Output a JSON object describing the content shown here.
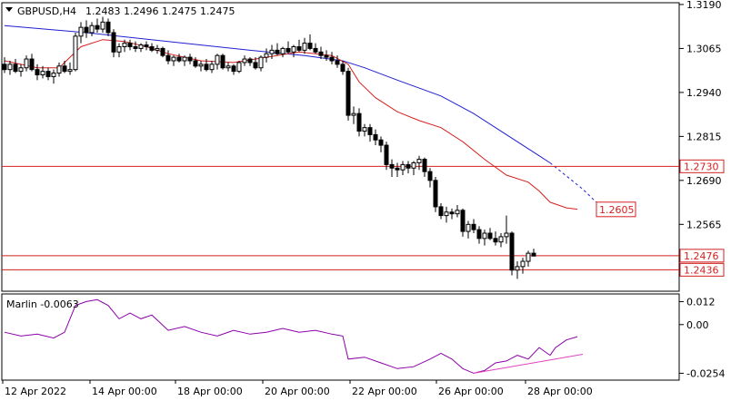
{
  "header": {
    "dropdown_icon": "triangle-down-icon",
    "symbol": "GBPUSD,H4",
    "ohlc": "1.2483 1.2496 1.2475 1.2475"
  },
  "colors": {
    "candle": "#000000",
    "ma_blue": "#1f1fd0",
    "ma_red": "#d42020",
    "level_line": "#d42020",
    "marlin_line": "#8b00a8",
    "divergence": "#e040c0"
  },
  "chart_data": [
    {
      "type": "candlestick",
      "ylim": [
        1.2375,
        1.3195
      ],
      "y_ticks": [
        "1.3190",
        "1.3065",
        "1.2940",
        "1.2815",
        "1.2690",
        "1.2565"
      ],
      "x_ticks": [
        "12 Apr 2022",
        "14 Apr 00:00",
        "18 Apr 00:00",
        "20 Apr 00:00",
        "22 Apr 00:00",
        "26 Apr 00:00",
        "28 Apr 00:00"
      ],
      "candles": [
        [
          1.302,
          1.304,
          1.2995,
          1.3005
        ],
        [
          1.3005,
          1.303,
          1.299,
          1.302
        ],
        [
          1.302,
          1.3035,
          1.2995,
          1.3
        ],
        [
          1.3,
          1.302,
          1.2985,
          1.301
        ],
        [
          1.301,
          1.3045,
          1.3,
          1.3035
        ],
        [
          1.3035,
          1.305,
          1.3,
          1.3005
        ],
        [
          1.3005,
          1.302,
          1.2975,
          1.299
        ],
        [
          1.299,
          1.3015,
          1.298,
          1.3
        ],
        [
          1.3,
          1.301,
          1.2975,
          1.2985
        ],
        [
          1.2985,
          1.3005,
          1.2965,
          1.2995
        ],
        [
          1.2995,
          1.3025,
          1.2985,
          1.3015
        ],
        [
          1.3015,
          1.303,
          1.2995,
          1.3
        ],
        [
          1.3,
          1.3025,
          1.299,
          1.3005
        ],
        [
          1.3005,
          1.311,
          1.3,
          1.31
        ],
        [
          1.31,
          1.314,
          1.308,
          1.3125
        ],
        [
          1.3125,
          1.3145,
          1.3095,
          1.311
        ],
        [
          1.311,
          1.314,
          1.31,
          1.313
        ],
        [
          1.313,
          1.315,
          1.311,
          1.312
        ],
        [
          1.312,
          1.3155,
          1.311,
          1.314
        ],
        [
          1.314,
          1.315,
          1.31,
          1.311
        ],
        [
          1.311,
          1.312,
          1.304,
          1.3055
        ],
        [
          1.3055,
          1.308,
          1.304,
          1.307
        ],
        [
          1.307,
          1.309,
          1.3055,
          1.308
        ],
        [
          1.308,
          1.309,
          1.306,
          1.307
        ],
        [
          1.307,
          1.3085,
          1.3055,
          1.3065
        ],
        [
          1.3065,
          1.308,
          1.3055,
          1.3075
        ],
        [
          1.3075,
          1.3085,
          1.306,
          1.307
        ],
        [
          1.307,
          1.308,
          1.3055,
          1.306
        ],
        [
          1.306,
          1.3075,
          1.305,
          1.3065
        ],
        [
          1.3065,
          1.307,
          1.304,
          1.3045
        ],
        [
          1.3045,
          1.306,
          1.302,
          1.303
        ],
        [
          1.303,
          1.3045,
          1.3015,
          1.304
        ],
        [
          1.304,
          1.305,
          1.3025,
          1.303
        ],
        [
          1.303,
          1.3045,
          1.3015,
          1.304
        ],
        [
          1.304,
          1.305,
          1.302,
          1.303
        ],
        [
          1.303,
          1.304,
          1.301,
          1.3015
        ],
        [
          1.3015,
          1.303,
          1.3,
          1.302
        ],
        [
          1.302,
          1.3035,
          1.3,
          1.3005
        ],
        [
          1.3005,
          1.303,
          1.2995,
          1.302
        ],
        [
          1.302,
          1.305,
          1.3005,
          1.3045
        ],
        [
          1.3045,
          1.305,
          1.3005,
          1.301
        ],
        [
          1.301,
          1.3025,
          1.3,
          1.3015
        ],
        [
          1.3015,
          1.302,
          1.299,
          1.3
        ],
        [
          1.3,
          1.303,
          1.2995,
          1.3025
        ],
        [
          1.3025,
          1.3045,
          1.3015,
          1.3035
        ],
        [
          1.3035,
          1.304,
          1.3015,
          1.3025
        ],
        [
          1.3025,
          1.304,
          1.3005,
          1.301
        ],
        [
          1.301,
          1.3045,
          1.3,
          1.304
        ],
        [
          1.304,
          1.3065,
          1.3025,
          1.305
        ],
        [
          1.305,
          1.3075,
          1.3035,
          1.306
        ],
        [
          1.306,
          1.308,
          1.3045,
          1.305
        ],
        [
          1.305,
          1.307,
          1.304,
          1.3065
        ],
        [
          1.3065,
          1.3085,
          1.305,
          1.3055
        ],
        [
          1.3055,
          1.3075,
          1.304,
          1.307
        ],
        [
          1.307,
          1.309,
          1.3055,
          1.306
        ],
        [
          1.306,
          1.3095,
          1.305,
          1.308
        ],
        [
          1.308,
          1.3105,
          1.306,
          1.3065
        ],
        [
          1.3065,
          1.308,
          1.305,
          1.3055
        ],
        [
          1.3055,
          1.307,
          1.3035,
          1.3045
        ],
        [
          1.3045,
          1.306,
          1.303,
          1.304
        ],
        [
          1.304,
          1.3055,
          1.302,
          1.303
        ],
        [
          1.303,
          1.3045,
          1.301,
          1.302
        ],
        [
          1.302,
          1.303,
          1.299,
          1.3
        ],
        [
          1.3,
          1.301,
          1.286,
          1.2875
        ],
        [
          1.2875,
          1.29,
          1.285,
          1.288
        ],
        [
          1.288,
          1.2895,
          1.2815,
          1.283
        ],
        [
          1.283,
          1.285,
          1.2815,
          1.284
        ],
        [
          1.284,
          1.285,
          1.28,
          1.282
        ],
        [
          1.282,
          1.2835,
          1.279,
          1.2805
        ],
        [
          1.2805,
          1.2815,
          1.277,
          1.279
        ],
        [
          1.279,
          1.28,
          1.272,
          1.2735
        ],
        [
          1.2735,
          1.275,
          1.27,
          1.2725
        ],
        [
          1.2725,
          1.274,
          1.27,
          1.272
        ],
        [
          1.272,
          1.2745,
          1.2705,
          1.2735
        ],
        [
          1.2735,
          1.2745,
          1.271,
          1.2725
        ],
        [
          1.2725,
          1.2745,
          1.2705,
          1.274
        ],
        [
          1.274,
          1.276,
          1.272,
          1.275
        ],
        [
          1.275,
          1.2755,
          1.27,
          1.2715
        ],
        [
          1.2715,
          1.2725,
          1.267,
          1.269
        ],
        [
          1.269,
          1.27,
          1.26,
          1.2615
        ],
        [
          1.2615,
          1.2625,
          1.258,
          1.259
        ],
        [
          1.259,
          1.2615,
          1.257,
          1.26
        ],
        [
          1.26,
          1.261,
          1.258,
          1.2595
        ],
        [
          1.2595,
          1.262,
          1.2585,
          1.2605
        ],
        [
          1.2605,
          1.261,
          1.253,
          1.2545
        ],
        [
          1.2545,
          1.2575,
          1.2525,
          1.2565
        ],
        [
          1.2565,
          1.258,
          1.254,
          1.255
        ],
        [
          1.255,
          1.256,
          1.251,
          1.2525
        ],
        [
          1.2525,
          1.255,
          1.2505,
          1.254
        ],
        [
          1.254,
          1.2555,
          1.252,
          1.2525
        ],
        [
          1.2525,
          1.2545,
          1.2505,
          1.2515
        ],
        [
          1.2515,
          1.254,
          1.25,
          1.253
        ],
        [
          1.253,
          1.259,
          1.251,
          1.254
        ],
        [
          1.254,
          1.2545,
          1.242,
          1.2435
        ],
        [
          1.2435,
          1.246,
          1.241,
          1.2445
        ],
        [
          1.2445,
          1.247,
          1.2425,
          1.246
        ],
        [
          1.246,
          1.249,
          1.2445,
          1.2483
        ],
        [
          1.2483,
          1.2496,
          1.2475,
          1.2475
        ]
      ],
      "ma_blue": [
        [
          0,
          1.313
        ],
        [
          15,
          1.311
        ],
        [
          30,
          1.3085
        ],
        [
          45,
          1.306
        ],
        [
          55,
          1.3045
        ],
        [
          62,
          1.303
        ],
        [
          66,
          1.301
        ],
        [
          72,
          1.2975
        ],
        [
          80,
          1.293
        ],
        [
          86,
          1.288
        ],
        [
          92,
          1.282
        ],
        [
          98,
          1.276
        ],
        [
          100,
          1.274
        ]
      ],
      "ma_blue_projection": [
        [
          100,
          1.274
        ],
        [
          106,
          1.2665
        ],
        [
          111,
          1.259
        ]
      ],
      "ma_red": [
        [
          0,
          1.303
        ],
        [
          6,
          1.301
        ],
        [
          10,
          1.301
        ],
        [
          14,
          1.307
        ],
        [
          18,
          1.309
        ],
        [
          22,
          1.3085
        ],
        [
          26,
          1.307
        ],
        [
          30,
          1.305
        ],
        [
          36,
          1.303
        ],
        [
          42,
          1.3025
        ],
        [
          48,
          1.304
        ],
        [
          54,
          1.3055
        ],
        [
          60,
          1.3045
        ],
        [
          63,
          1.302
        ],
        [
          65,
          1.297
        ],
        [
          68,
          1.2925
        ],
        [
          72,
          1.2885
        ],
        [
          76,
          1.286
        ],
        [
          80,
          1.284
        ],
        [
          84,
          1.28
        ],
        [
          88,
          1.275
        ],
        [
          92,
          1.2705
        ],
        [
          96,
          1.2685
        ],
        [
          98,
          1.266
        ],
        [
          100,
          1.2628
        ],
        [
          103,
          1.2612
        ],
        [
          105,
          1.2608
        ]
      ],
      "levels": [
        {
          "value": 1.273,
          "label": "1.2730"
        },
        {
          "value": 1.2476,
          "label": "1.2476"
        },
        {
          "value": 1.2436,
          "label": "1.2436"
        }
      ],
      "annotation": {
        "label": "1.2605",
        "value": 1.2605
      }
    },
    {
      "type": "line",
      "title": "Marlin -0.0063",
      "ylim": [
        -0.029,
        0.016
      ],
      "y_ticks": [
        "0.012",
        "0.00",
        "-0.0254"
      ],
      "values": [
        [
          0,
          -0.004
        ],
        [
          3,
          -0.006
        ],
        [
          6,
          -0.005
        ],
        [
          9,
          -0.007
        ],
        [
          11,
          -0.004
        ],
        [
          13,
          0.01
        ],
        [
          15,
          0.012
        ],
        [
          17,
          0.013
        ],
        [
          19,
          0.01
        ],
        [
          21,
          0.003
        ],
        [
          23,
          0.006
        ],
        [
          25,
          0.003
        ],
        [
          27,
          0.005
        ],
        [
          30,
          -0.003
        ],
        [
          33,
          -0.001
        ],
        [
          36,
          -0.004
        ],
        [
          39,
          -0.006
        ],
        [
          42,
          -0.003
        ],
        [
          45,
          -0.005
        ],
        [
          48,
          -0.004
        ],
        [
          51,
          -0.002
        ],
        [
          54,
          -0.004
        ],
        [
          57,
          -0.003
        ],
        [
          60,
          -0.005
        ],
        [
          62,
          -0.006
        ],
        [
          63,
          -0.018
        ],
        [
          66,
          -0.017
        ],
        [
          69,
          -0.02
        ],
        [
          72,
          -0.023
        ],
        [
          75,
          -0.022
        ],
        [
          78,
          -0.018
        ],
        [
          80,
          -0.015
        ],
        [
          82,
          -0.018
        ],
        [
          84,
          -0.023
        ],
        [
          86,
          -0.0254
        ],
        [
          88,
          -0.024
        ],
        [
          90,
          -0.02
        ],
        [
          92,
          -0.019
        ],
        [
          94,
          -0.016
        ],
        [
          96,
          -0.018
        ],
        [
          98,
          -0.012
        ],
        [
          100,
          -0.016
        ],
        [
          101,
          -0.012
        ],
        [
          103,
          -0.008
        ],
        [
          105,
          -0.0063
        ]
      ],
      "divergence": [
        [
          86,
          -0.0254
        ],
        [
          106,
          -0.0155
        ]
      ]
    }
  ]
}
